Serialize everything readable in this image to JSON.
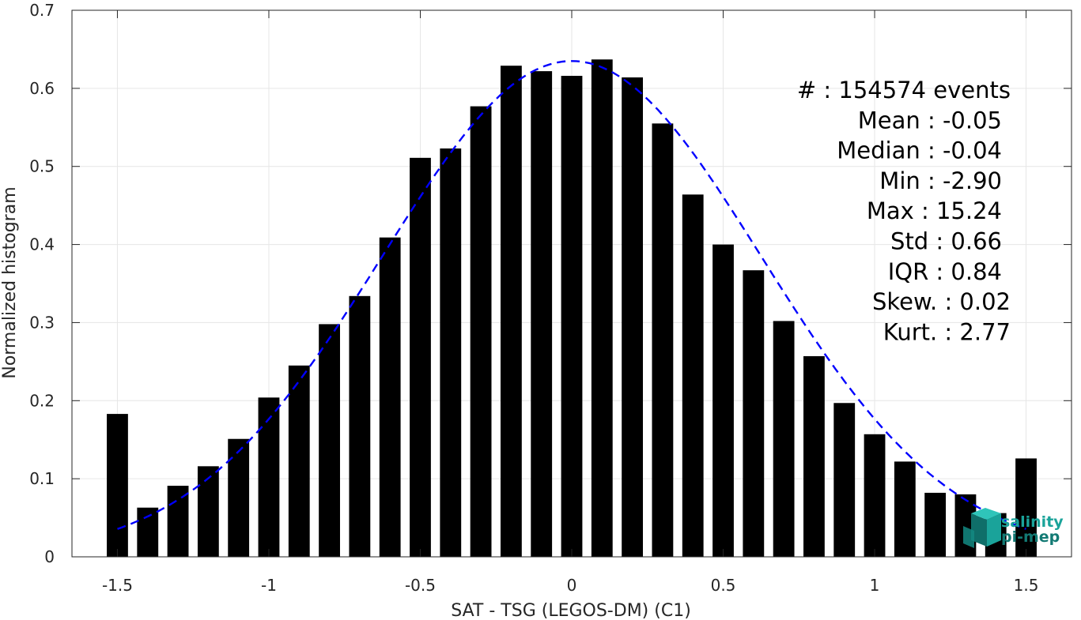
{
  "chart_data": {
    "type": "bar",
    "xlabel": "SAT - TSG (LEGOS-DM) (C1)",
    "ylabel": "Normalized histogram",
    "xlim": [
      -1.65,
      1.65
    ],
    "ylim": [
      0,
      0.7
    ],
    "grid": true,
    "x_ticks": [
      "-1.5",
      "-1",
      "-0.5",
      "0",
      "0.5",
      "1",
      "1.5"
    ],
    "y_ticks": [
      "0",
      "0.1",
      "0.2",
      "0.3",
      "0.4",
      "0.5",
      "0.6",
      "0.7"
    ],
    "bar_width": 0.07,
    "bar_color": "#000000",
    "x": [
      -1.5,
      -1.4,
      -1.3,
      -1.2,
      -1.1,
      -1.0,
      -0.9,
      -0.8,
      -0.7,
      -0.6,
      -0.5,
      -0.4,
      -0.3,
      -0.2,
      -0.1,
      0.0,
      0.1,
      0.2,
      0.3,
      0.4,
      0.5,
      0.6,
      0.7,
      0.8,
      0.9,
      1.0,
      1.1,
      1.2,
      1.3,
      1.4,
      1.5
    ],
    "values": [
      0.183,
      0.063,
      0.091,
      0.116,
      0.151,
      0.204,
      0.245,
      0.298,
      0.334,
      0.409,
      0.511,
      0.523,
      0.577,
      0.629,
      0.622,
      0.616,
      0.637,
      0.614,
      0.555,
      0.464,
      0.4,
      0.367,
      0.302,
      0.257,
      0.197,
      0.157,
      0.122,
      0.082,
      0.08,
      0.056,
      0.126
    ],
    "fit_curve": {
      "style": "dashed",
      "color": "#0000ff",
      "mean": -0.0,
      "std": 0.625,
      "peak": 0.635,
      "x_range": [
        -1.5,
        1.5
      ]
    },
    "annotations": [
      "#  : 154574 events",
      "Mean : -0.05",
      "Median : -0.04",
      "Min : -2.90",
      "Max : 15.24",
      "Std : 0.66",
      "IQR : 0.84",
      "Skew. : 0.02",
      "Kurt. : 2.77"
    ]
  },
  "logo": {
    "line1": "salinity",
    "line2": "pi-mep",
    "color": "#1aa39a"
  }
}
